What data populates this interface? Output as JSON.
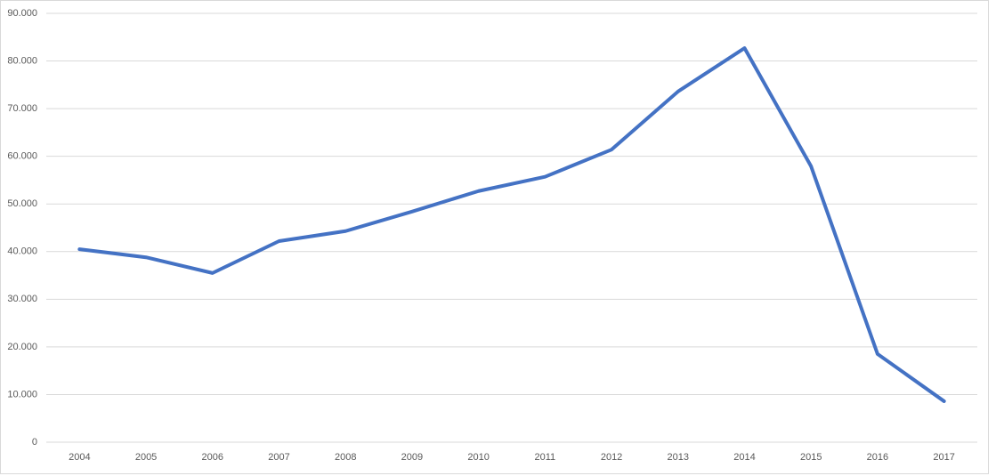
{
  "chart_data": {
    "type": "line",
    "categories": [
      "2004",
      "2005",
      "2006",
      "2007",
      "2008",
      "2009",
      "2010",
      "2011",
      "2012",
      "2013",
      "2014",
      "2015",
      "2016",
      "2017"
    ],
    "series": [
      {
        "color": "#4472c4",
        "values": [
          40500,
          38800,
          35500,
          42200,
          44300,
          48400,
          52700,
          55700,
          61400,
          73600,
          82700,
          57900,
          18500,
          8600
        ]
      }
    ],
    "ylim": [
      0,
      90000
    ],
    "yticks": [
      0,
      {
        "value": 10000,
        "label": "10.000"
      },
      {
        "value": 20000,
        "label": "20.000"
      },
      {
        "value": 30000,
        "label": "30.000"
      },
      {
        "value": 40000,
        "label": "40.000"
      },
      {
        "value": 50000,
        "label": "50.000"
      },
      {
        "value": 60000,
        "label": "60.000"
      },
      {
        "value": 70000,
        "label": "70.000"
      },
      {
        "value": 80000,
        "label": "80.000"
      },
      {
        "value": 90000,
        "label": "90.000"
      }
    ],
    "grid": true
  }
}
